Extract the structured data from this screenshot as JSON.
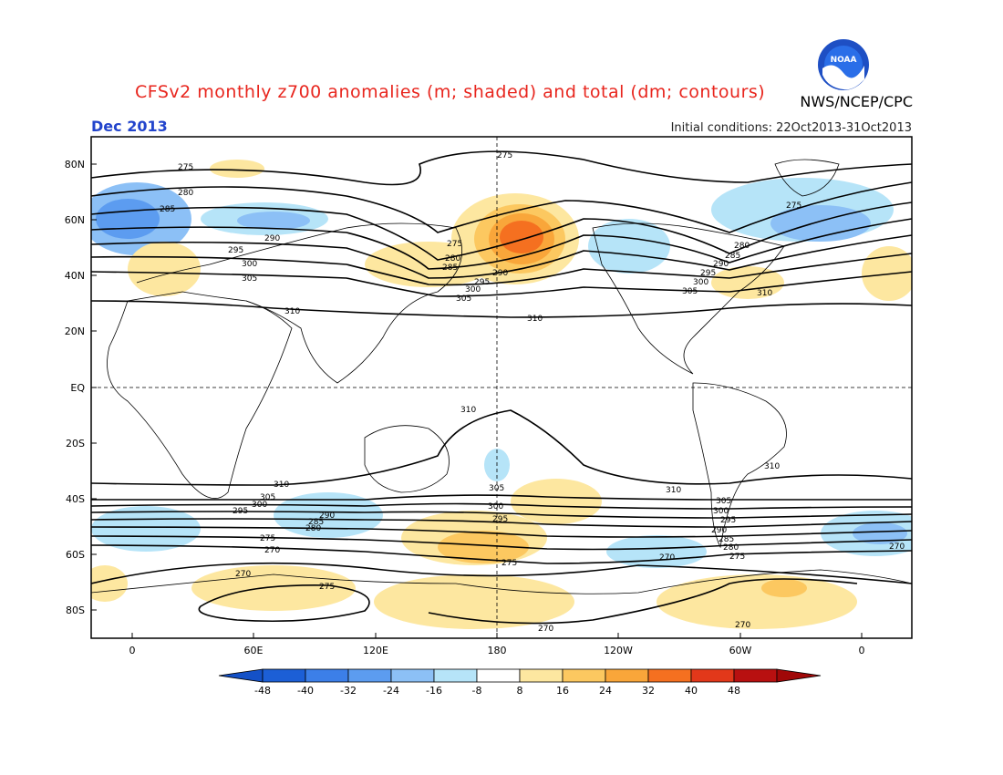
{
  "header": {
    "title": "CFSv2 monthly z700 anomalies (m; shaded) and total (dm; contours)",
    "organization": "NWS/NCEP/CPC",
    "month": "Dec 2013",
    "initial_conditions": "Initial conditions: 22Oct2013-31Oct2013"
  },
  "logo": {
    "icon": "noaa-logo-icon",
    "text": "NOAA"
  },
  "axes": {
    "lat_labels": [
      "80N",
      "60N",
      "40N",
      "20N",
      "EQ",
      "20S",
      "40S",
      "60S",
      "80S"
    ],
    "lon_labels": [
      "0",
      "60E",
      "120E",
      "180",
      "120W",
      "60W",
      "0"
    ]
  },
  "colorbar": {
    "labels": [
      "-48",
      "-40",
      "-32",
      "-24",
      "-16",
      "-8",
      "8",
      "16",
      "24",
      "32",
      "40",
      "48"
    ],
    "colors": [
      "#1c5fd6",
      "#3c7fe8",
      "#5c9cf0",
      "#8cc0f6",
      "#b6e4f8",
      "#ffffff",
      "#fde7a0",
      "#fcc860",
      "#f9a63a",
      "#f57020",
      "#e2381a",
      "#b81010"
    ],
    "low_end_color": "#1451c7",
    "high_end_color": "#a00808"
  },
  "contour_labels": [
    "275",
    "280",
    "285",
    "290",
    "295",
    "300",
    "305",
    "310",
    "270"
  ]
}
